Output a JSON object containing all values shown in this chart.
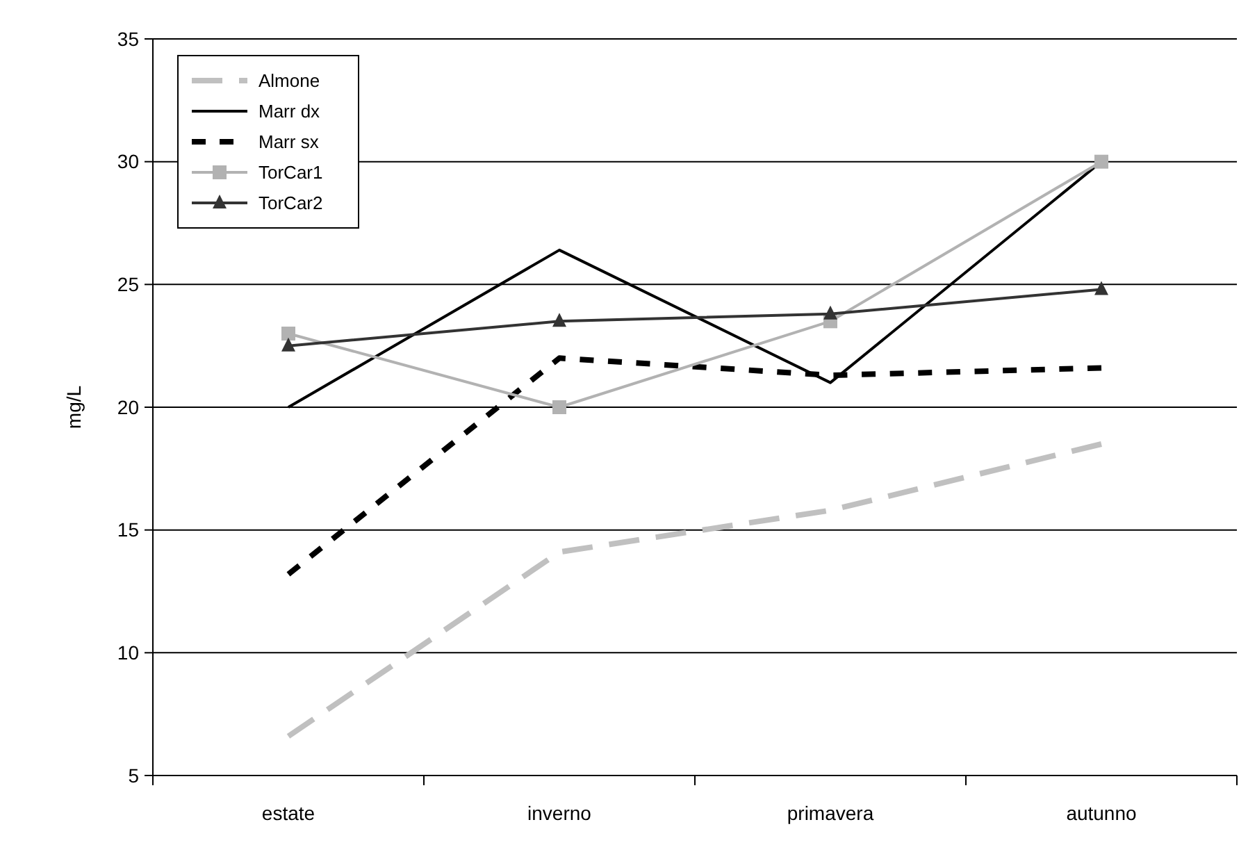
{
  "chart_data": {
    "type": "line",
    "ylabel": "mg/L",
    "categories": [
      "estate",
      "inverno",
      "primavera",
      "autunno"
    ],
    "ylim": [
      5,
      35
    ],
    "yticks": [
      5,
      10,
      15,
      20,
      25,
      30,
      35
    ],
    "grid": "y",
    "legend": "top left",
    "series": [
      {
        "name": "Almone",
        "color": "#c0c0c0",
        "values": [
          6.6,
          14.1,
          15.8,
          18.5
        ],
        "line_style": "dashed",
        "marker": "none"
      },
      {
        "name": "Marr dx",
        "color": "#000000",
        "values": [
          20,
          26.4,
          21,
          30
        ],
        "line_style": "solid",
        "marker": "none"
      },
      {
        "name": "Marr sx",
        "color": "#000000",
        "values": [
          13.2,
          22,
          21.3,
          21.6
        ],
        "line_style": "dotted",
        "marker": "none"
      },
      {
        "name": "TorCar1",
        "color": "#b2b2b2",
        "values": [
          23,
          20,
          23.5,
          30
        ],
        "line_style": "solid",
        "marker": "square"
      },
      {
        "name": "TorCar2",
        "color": "#333333",
        "values": [
          22.5,
          23.5,
          23.8,
          24.8
        ],
        "line_style": "solid",
        "marker": "triangle"
      }
    ]
  }
}
